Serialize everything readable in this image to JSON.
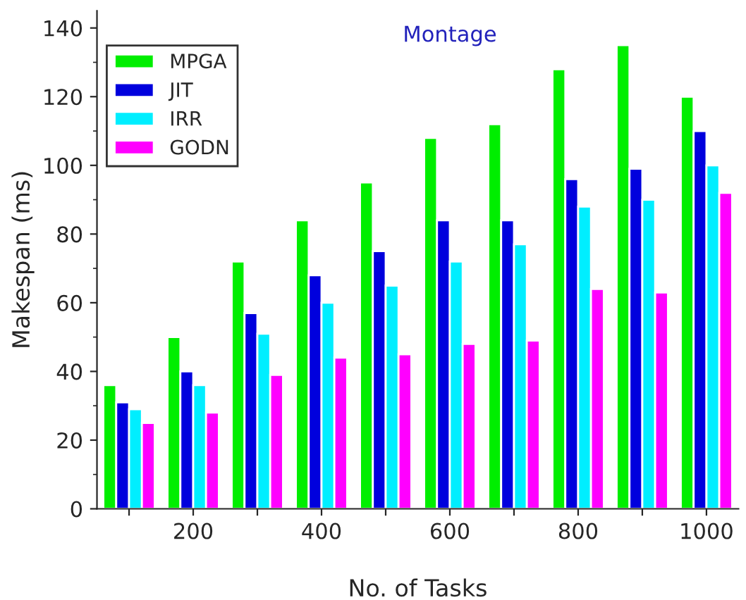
{
  "chart_data": {
    "type": "bar",
    "title": "Montage",
    "xlabel": "No. of Tasks",
    "ylabel": "Makespan (ms)",
    "categories": [
      null,
      "200",
      null,
      "400",
      null,
      "600",
      null,
      "800",
      null,
      "1000"
    ],
    "series": [
      {
        "name": "MPGA",
        "color": "#00ee00",
        "values": [
          36,
          50,
          72,
          84,
          95,
          108,
          112,
          128,
          135,
          120
        ]
      },
      {
        "name": "JIT",
        "color": "#0000dd",
        "values": [
          31,
          40,
          57,
          68,
          75,
          84,
          84,
          96,
          99,
          110
        ]
      },
      {
        "name": "IRR",
        "color": "#00eeff",
        "values": [
          29,
          36,
          51,
          60,
          65,
          72,
          77,
          88,
          90,
          100
        ]
      },
      {
        "name": "GODN",
        "color": "#ff00ff",
        "values": [
          25,
          28,
          39,
          44,
          45,
          48,
          49,
          64,
          63,
          92
        ]
      }
    ],
    "ylim": [
      0,
      145
    ],
    "yticks": [
      0,
      20,
      40,
      60,
      80,
      100,
      120,
      140
    ],
    "grid": false,
    "legend": "top left"
  }
}
